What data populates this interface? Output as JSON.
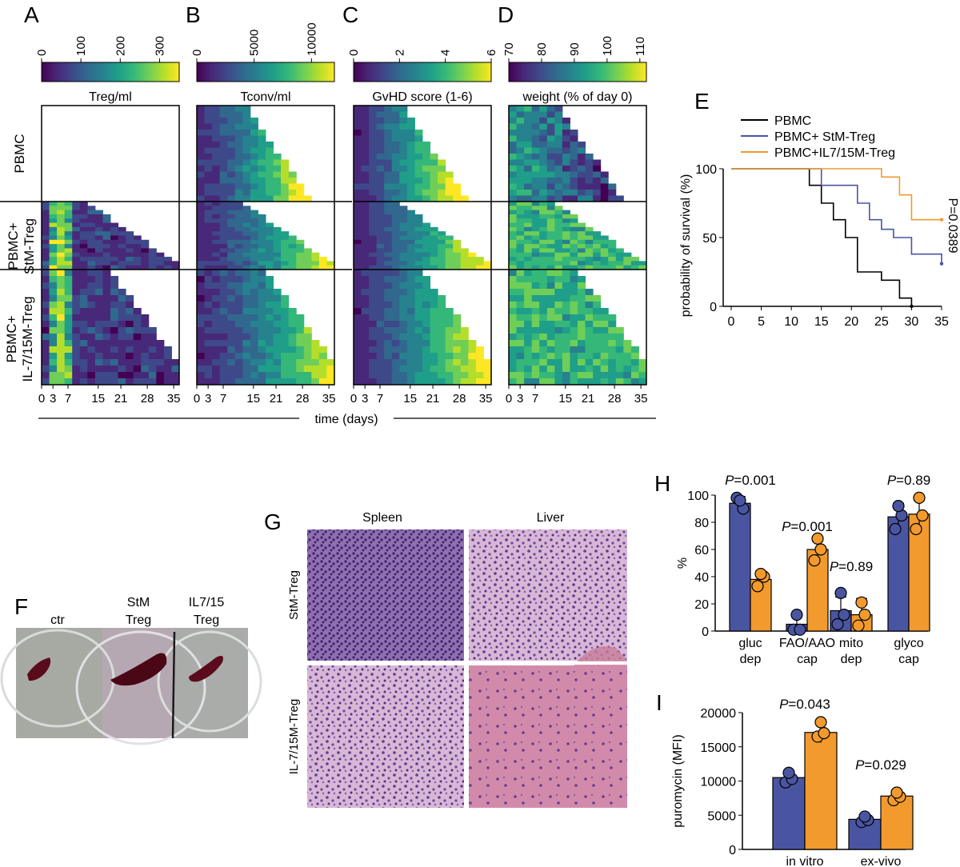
{
  "panel_letters": [
    "A",
    "B",
    "C",
    "D",
    "E",
    "F",
    "G",
    "H",
    "I"
  ],
  "colors": {
    "black": "#000000",
    "blue": "#4a55a2",
    "orange": "#f29a2e",
    "viridis": [
      "#440154",
      "#482878",
      "#3e4989",
      "#31688e",
      "#26828e",
      "#1f9e89",
      "#35b779",
      "#6ece58",
      "#b5de2b",
      "#fde725"
    ]
  },
  "heatmaps": {
    "row_groups": [
      "PBMC",
      "PBMC+\nStM-Treg",
      "PBMC+\nIL-7/15M-Treg"
    ],
    "x_ticks": [
      "0",
      "3",
      "7",
      "15",
      "21",
      "28",
      "35"
    ],
    "x_tick_days": [
      0,
      3,
      7,
      15,
      21,
      28,
      35
    ],
    "xlabel": "time (days)",
    "panels": [
      {
        "letter": "A",
        "title": "Treg/ml",
        "colorbar_ticks": [
          "0",
          "100",
          "200",
          "300"
        ],
        "colorbar_values": [
          0,
          100,
          200,
          300
        ],
        "range": [
          0,
          350
        ]
      },
      {
        "letter": "B",
        "title": "Tconv/ml",
        "colorbar_ticks": [
          "0",
          "5000",
          "10000"
        ],
        "colorbar_values": [
          0,
          5000,
          10000
        ],
        "range": [
          0,
          12000
        ]
      },
      {
        "letter": "C",
        "title": "GvHD score (1-6)",
        "colorbar_ticks": [
          "0",
          "2",
          "4",
          "6"
        ],
        "colorbar_values": [
          0,
          2,
          4,
          6
        ],
        "range": [
          0,
          6
        ]
      },
      {
        "letter": "D",
        "title": "weight (% of day 0)",
        "colorbar_ticks": [
          "70",
          "80",
          "90",
          "100",
          "110"
        ],
        "colorbar_values": [
          70,
          80,
          90,
          100,
          110
        ],
        "range": [
          70,
          112
        ]
      }
    ]
  },
  "chart_data": [
    {
      "panel": "E",
      "type": "line",
      "ylabel": "probability of survival (%)",
      "xlabel": "",
      "xlim": [
        0,
        35
      ],
      "ylim": [
        0,
        100
      ],
      "x_ticks": [
        0,
        5,
        10,
        15,
        20,
        25,
        30,
        35
      ],
      "y_ticks": [
        0,
        50,
        100
      ],
      "annotation": "P=0.0389",
      "series": [
        {
          "name": "PBMC",
          "color": "#000000",
          "steps": [
            [
              0,
              100
            ],
            [
              13,
              100
            ],
            [
              13,
              88
            ],
            [
              15,
              88
            ],
            [
              15,
              75
            ],
            [
              17,
              75
            ],
            [
              17,
              63
            ],
            [
              19,
              63
            ],
            [
              19,
              50
            ],
            [
              21,
              50
            ],
            [
              21,
              25
            ],
            [
              25,
              25
            ],
            [
              25,
              19
            ],
            [
              28,
              19
            ],
            [
              28,
              6
            ],
            [
              30,
              6
            ],
            [
              30,
              0
            ]
          ]
        },
        {
          "name": "PBMC+ StM-Treg",
          "color": "#4a55a2",
          "steps": [
            [
              0,
              100
            ],
            [
              15,
              100
            ],
            [
              15,
              88
            ],
            [
              21,
              88
            ],
            [
              21,
              75
            ],
            [
              23,
              75
            ],
            [
              23,
              63
            ],
            [
              25,
              63
            ],
            [
              25,
              56
            ],
            [
              27,
              56
            ],
            [
              27,
              50
            ],
            [
              30,
              50
            ],
            [
              30,
              38
            ],
            [
              35,
              38
            ],
            [
              35,
              31
            ]
          ]
        },
        {
          "name": "PBMC+IL7/15M-Treg",
          "color": "#f29a2e",
          "steps": [
            [
              0,
              100
            ],
            [
              25,
              100
            ],
            [
              25,
              94
            ],
            [
              28,
              94
            ],
            [
              28,
              81
            ],
            [
              30,
              81
            ],
            [
              30,
              63
            ],
            [
              35,
              63
            ]
          ]
        }
      ]
    },
    {
      "panel": "H",
      "type": "bar",
      "ylabel": "%",
      "ylim": [
        0,
        100
      ],
      "y_ticks": [
        0,
        20,
        40,
        60,
        80,
        100
      ],
      "categories": [
        "gluc\ndep",
        "FAO/AAO\ncap",
        "mito\ndep",
        "glyco\ncap"
      ],
      "p_values": [
        "P=0.001",
        "P=0.001",
        "P=0.89",
        "P=0.89"
      ],
      "series": [
        {
          "name": "",
          "color": "#4a55a2",
          "values": [
            94,
            5,
            15,
            84
          ],
          "err": [
            5,
            6,
            10,
            10
          ],
          "points": [
            [
              98,
              90,
              96
            ],
            [
              1,
              1,
              12
            ],
            [
              5,
              12,
              28
            ],
            [
              75,
              85,
              92
            ]
          ]
        },
        {
          "name": "",
          "color": "#f29a2e",
          "values": [
            38,
            60,
            12,
            86
          ],
          "err": [
            6,
            6,
            12,
            10
          ],
          "points": [
            [
              33,
              40,
              42
            ],
            [
              52,
              60,
              68
            ],
            [
              4,
              12,
              21
            ],
            [
              75,
              85,
              98
            ]
          ]
        }
      ]
    },
    {
      "panel": "I",
      "type": "bar",
      "ylabel": "puromycin (MFI)",
      "ylim": [
        0,
        20000
      ],
      "y_ticks": [
        0,
        5000,
        10000,
        15000,
        20000
      ],
      "categories": [
        "in vitro",
        "ex-vivo"
      ],
      "p_values": [
        "P=0.043",
        "P=0.029"
      ],
      "series": [
        {
          "name": "",
          "color": "#4a55a2",
          "values": [
            10500,
            4400
          ],
          "err": [
            900,
            500
          ],
          "points": [
            [
              9800,
              10300,
              11200
            ],
            [
              4000,
              4300,
              4800
            ]
          ]
        },
        {
          "name": "",
          "color": "#f29a2e",
          "values": [
            17100,
            7800
          ],
          "err": [
            1500,
            900
          ],
          "points": [
            [
              16500,
              17000,
              18600
            ],
            [
              7200,
              7700,
              8300
            ]
          ]
        }
      ]
    }
  ],
  "photos": {
    "F_labels": [
      "ctr",
      "StM\nTreg",
      "IL7/15\nTreg"
    ],
    "G_cols": [
      "Spleen",
      "Liver"
    ],
    "G_rows": [
      "StM-Treg",
      "IL-7/15M-Treg"
    ]
  }
}
